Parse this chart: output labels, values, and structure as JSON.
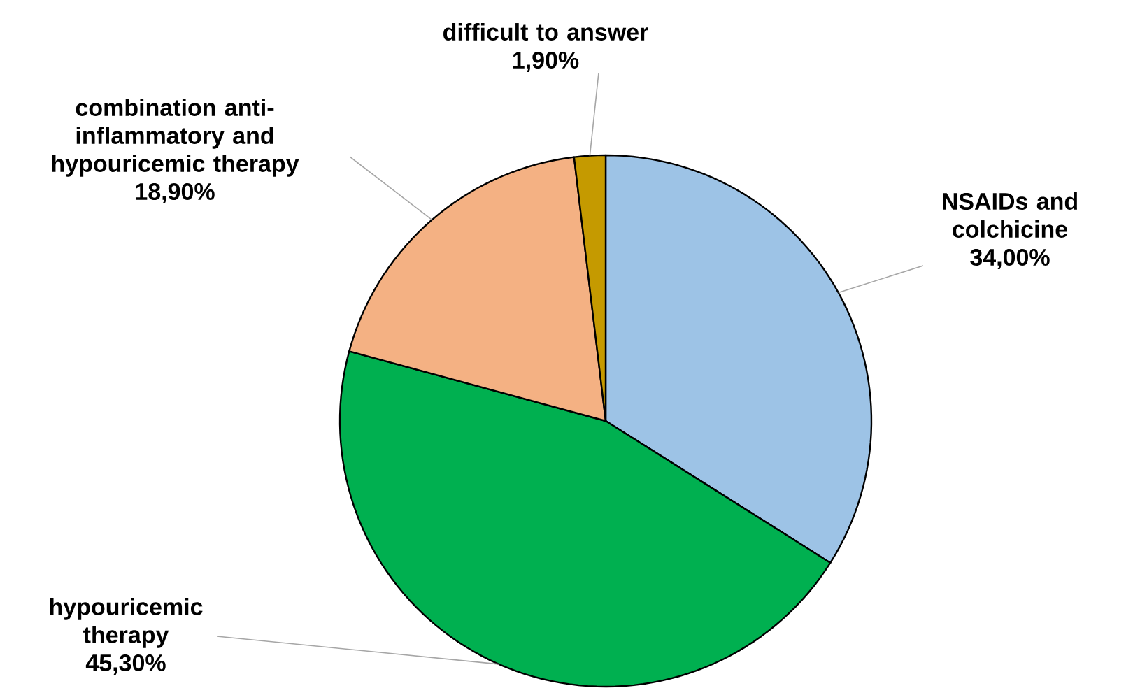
{
  "chart_data": {
    "type": "pie",
    "categories": [
      "NSAIDs and colchicine",
      "hypouricemic therapy",
      "combination anti-inflammatory and hypouricemic therapy",
      "difficult to answer"
    ],
    "values": [
      34.0,
      45.3,
      18.9,
      1.9
    ],
    "value_labels": [
      "34,00%",
      "45,30%",
      "18,90%",
      "1,90%"
    ],
    "colors": [
      "#9dc3e6",
      "#00b050",
      "#f4b183",
      "#c59a00"
    ]
  }
}
